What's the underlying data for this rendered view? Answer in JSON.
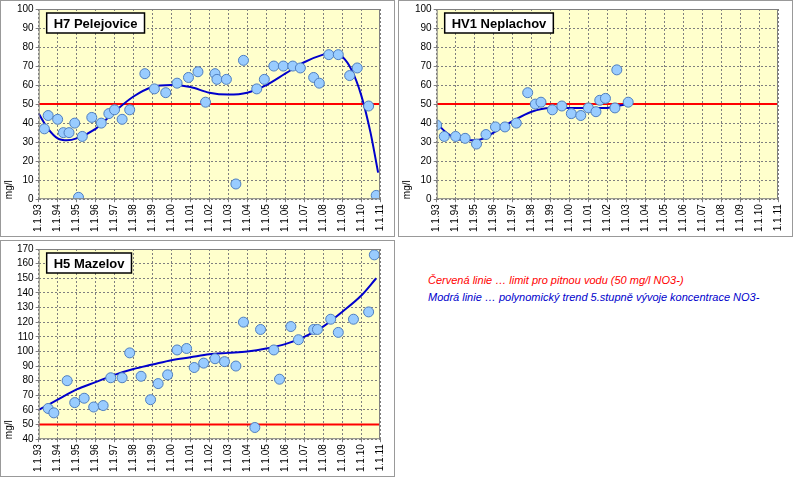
{
  "chart_data": [
    {
      "type": "scatter",
      "title": "H7 Pelejovice",
      "y_label": "mg/l",
      "xlim": [
        1993,
        2011
      ],
      "xticks": [
        {
          "value": 1993,
          "label": "1.1.93"
        },
        {
          "value": 1994,
          "label": "1.1.94"
        },
        {
          "value": 1995,
          "label": "1.1.95"
        },
        {
          "value": 1996,
          "label": "1.1.96"
        },
        {
          "value": 1997,
          "label": "1.1.97"
        },
        {
          "value": 1998,
          "label": "1.1.98"
        },
        {
          "value": 1999,
          "label": "1.1.99"
        },
        {
          "value": 2000,
          "label": "1.1.00"
        },
        {
          "value": 2001,
          "label": "1.1.01"
        },
        {
          "value": 2002,
          "label": "1.1.02"
        },
        {
          "value": 2003,
          "label": "1.1.03"
        },
        {
          "value": 2004,
          "label": "1.1.04"
        },
        {
          "value": 2005,
          "label": "1.1.05"
        },
        {
          "value": 2006,
          "label": "1.1.06"
        },
        {
          "value": 2007,
          "label": "1.1.07"
        },
        {
          "value": 2008,
          "label": "1.1.08"
        },
        {
          "value": 2009,
          "label": "1.1.09"
        },
        {
          "value": 2010,
          "label": "1.1.10"
        },
        {
          "value": 2011,
          "label": "1.1.11"
        }
      ],
      "ylim": [
        0,
        100
      ],
      "yticks": [
        0,
        10,
        20,
        30,
        40,
        50,
        60,
        70,
        80,
        90,
        100
      ],
      "grid": true,
      "series": [
        {
          "type": "scatter",
          "marker": "circle",
          "color": "#99ccff",
          "x": [
            1993.3,
            1993.5,
            1994.0,
            1994.3,
            1994.6,
            1994.9,
            1995.1,
            1995.3,
            1995.8,
            1996.3,
            1996.7,
            1997.0,
            1997.4,
            1997.8,
            1998.6,
            1999.1,
            1999.7,
            2000.3,
            2000.9,
            2001.4,
            2001.8,
            2002.3,
            2002.4,
            2002.9,
            2003.4,
            2003.8,
            2004.5,
            2004.9,
            2005.4,
            2005.9,
            2006.4,
            2006.8,
            2007.5,
            2007.8,
            2008.3,
            2008.8,
            2009.4,
            2009.8,
            2010.4,
            2010.8
          ],
          "values": [
            37,
            44,
            42,
            35,
            35,
            40,
            1,
            33,
            43,
            40,
            45,
            47,
            42,
            47,
            66,
            58,
            56,
            61,
            64,
            67,
            51,
            66,
            63,
            63,
            8,
            73,
            58,
            63,
            70,
            70,
            70,
            69,
            64,
            61,
            76,
            76,
            65,
            69,
            49,
            2
          ]
        },
        {
          "type": "line",
          "line_style": "solid",
          "color": "#0000cc",
          "x": [
            1993,
            1993.5,
            1994,
            1994.5,
            1995,
            1996,
            1997,
            1998,
            1999,
            2000,
            2001,
            2002,
            2003,
            2004,
            2005,
            2006,
            2007,
            2008,
            2008.5,
            2009,
            2009.5,
            2010,
            2010.5,
            2010.9
          ],
          "values": [
            45,
            37,
            32,
            31,
            32,
            37,
            46,
            54,
            59,
            60,
            59,
            56,
            55,
            56,
            60,
            66,
            72,
            76,
            77,
            75,
            68,
            55,
            35,
            14
          ]
        },
        {
          "type": "line",
          "line_style": "solid",
          "color": "#ff0000",
          "x": [
            1993,
            2011
          ],
          "values": [
            50,
            50
          ]
        }
      ]
    },
    {
      "type": "scatter",
      "title": "HV1 Neplachov",
      "y_label": "mg/l",
      "xlim": [
        1993,
        2011
      ],
      "xticks": [
        {
          "value": 1993,
          "label": "1.1.93"
        },
        {
          "value": 1994,
          "label": "1.1.94"
        },
        {
          "value": 1995,
          "label": "1.1.95"
        },
        {
          "value": 1996,
          "label": "1.1.96"
        },
        {
          "value": 1997,
          "label": "1.1.97"
        },
        {
          "value": 1998,
          "label": "1.1.98"
        },
        {
          "value": 1999,
          "label": "1.1.99"
        },
        {
          "value": 2000,
          "label": "1.1.00"
        },
        {
          "value": 2001,
          "label": "1.1.01"
        },
        {
          "value": 2002,
          "label": "1.1.02"
        },
        {
          "value": 2003,
          "label": "1.1.03"
        },
        {
          "value": 2004,
          "label": "1.1.04"
        },
        {
          "value": 2005,
          "label": "1.1.05"
        },
        {
          "value": 2006,
          "label": "1.1.06"
        },
        {
          "value": 2007,
          "label": "1.1.07"
        },
        {
          "value": 2008,
          "label": "1.1.08"
        },
        {
          "value": 2009,
          "label": "1.1.09"
        },
        {
          "value": 2010,
          "label": "1.1.10"
        },
        {
          "value": 2011,
          "label": "1.1.11"
        }
      ],
      "ylim": [
        0,
        100
      ],
      "yticks": [
        0,
        10,
        20,
        30,
        40,
        50,
        60,
        70,
        80,
        90,
        100
      ],
      "grid": true,
      "series": [
        {
          "type": "scatter",
          "marker": "circle",
          "color": "#99ccff",
          "x": [
            1993.0,
            1993.4,
            1994.0,
            1994.5,
            1995.1,
            1995.6,
            1996.1,
            1996.6,
            1997.2,
            1997.8,
            1998.2,
            1998.5,
            1999.1,
            1999.6,
            2000.1,
            2000.6,
            2001.0,
            2001.4,
            2001.6,
            2001.9,
            2002.4,
            2002.5,
            2003.1
          ],
          "values": [
            39,
            33,
            33,
            32,
            29,
            34,
            38,
            38,
            40,
            56,
            50,
            51,
            47,
            49,
            45,
            44,
            48,
            46,
            52,
            53,
            48,
            68,
            51
          ]
        },
        {
          "type": "line",
          "line_style": "solid",
          "color": "#0000cc",
          "x": [
            1993,
            1993.5,
            1994,
            1994.5,
            1995,
            1995.5,
            1996,
            1996.5,
            1997,
            1998,
            1999,
            2000,
            2001,
            2002,
            2002.5,
            2003,
            2003.2
          ],
          "values": [
            40,
            35,
            32,
            31,
            31,
            32,
            35,
            38,
            41,
            46,
            48,
            48,
            48,
            48,
            49,
            50,
            51
          ]
        },
        {
          "type": "line",
          "line_style": "solid",
          "color": "#ff0000",
          "x": [
            1993,
            2011
          ],
          "values": [
            50,
            50
          ]
        }
      ]
    },
    {
      "type": "scatter",
      "title": "H5 Mazelov",
      "y_label": "mg/l",
      "xlim": [
        1993,
        2011
      ],
      "xticks": [
        {
          "value": 1993,
          "label": "1.1.93"
        },
        {
          "value": 1994,
          "label": "1.1.94"
        },
        {
          "value": 1995,
          "label": "1.1.95"
        },
        {
          "value": 1996,
          "label": "1.1.96"
        },
        {
          "value": 1997,
          "label": "1.1.97"
        },
        {
          "value": 1998,
          "label": "1.1.98"
        },
        {
          "value": 1999,
          "label": "1.1.99"
        },
        {
          "value": 2000,
          "label": "1.1.00"
        },
        {
          "value": 2001,
          "label": "1.1.01"
        },
        {
          "value": 2002,
          "label": "1.1.02"
        },
        {
          "value": 2003,
          "label": "1.1.03"
        },
        {
          "value": 2004,
          "label": "1.1.04"
        },
        {
          "value": 2005,
          "label": "1.1.05"
        },
        {
          "value": 2006,
          "label": "1.1.06"
        },
        {
          "value": 2007,
          "label": "1.1.07"
        },
        {
          "value": 2008,
          "label": "1.1.08"
        },
        {
          "value": 2009,
          "label": "1.1.09"
        },
        {
          "value": 2010,
          "label": "1.1.10"
        },
        {
          "value": 2011,
          "label": "1.1.11"
        }
      ],
      "ylim": [
        40,
        170
      ],
      "yticks": [
        40,
        50,
        60,
        70,
        80,
        90,
        100,
        110,
        120,
        130,
        140,
        150,
        160,
        170
      ],
      "grid": true,
      "series": [
        {
          "type": "scatter",
          "marker": "circle",
          "color": "#99ccff",
          "x": [
            1993.5,
            1993.8,
            1994.5,
            1994.9,
            1995.4,
            1995.9,
            1996.4,
            1996.8,
            1997.4,
            1997.8,
            1998.4,
            1998.9,
            1999.3,
            1999.8,
            2000.3,
            2000.8,
            2001.2,
            2001.7,
            2002.3,
            2002.8,
            2003.4,
            2003.8,
            2004.4,
            2004.7,
            2005.4,
            2005.7,
            2006.3,
            2006.7,
            2007.5,
            2007.7,
            2008.4,
            2008.8,
            2009.6,
            2010.4,
            2010.7
          ],
          "values": [
            61,
            58,
            80,
            65,
            68,
            62,
            63,
            82,
            82,
            99,
            83,
            67,
            78,
            84,
            101,
            102,
            89,
            92,
            95,
            93,
            90,
            120,
            48,
            115,
            101,
            81,
            117,
            108,
            115,
            115,
            122,
            113,
            122,
            127,
            166
          ]
        },
        {
          "type": "line",
          "line_style": "solid",
          "color": "#0000cc",
          "x": [
            1993,
            1994,
            1995,
            1996,
            1997,
            1998,
            1999,
            2000,
            2001,
            2002,
            2003,
            2004,
            2005,
            2006,
            2007,
            2008,
            2009,
            2010,
            2010.8
          ],
          "values": [
            60,
            67,
            74,
            79,
            84,
            88,
            91,
            94,
            96,
            98,
            99,
            100,
            102,
            105,
            110,
            117,
            127,
            138,
            150
          ]
        },
        {
          "type": "line",
          "line_style": "solid",
          "color": "#ff0000",
          "x": [
            1993,
            2011
          ],
          "values": [
            50,
            50
          ]
        }
      ]
    }
  ],
  "notes": [
    {
      "text": "Červená  linie … limit pro pitnou vodu (50 mg/l NO3-)",
      "color": "#ff0000"
    },
    {
      "text": "Modrá  linie … polynomický trend 5.stupně vývoje koncentrace NO3-",
      "color": "#0000cc"
    }
  ]
}
